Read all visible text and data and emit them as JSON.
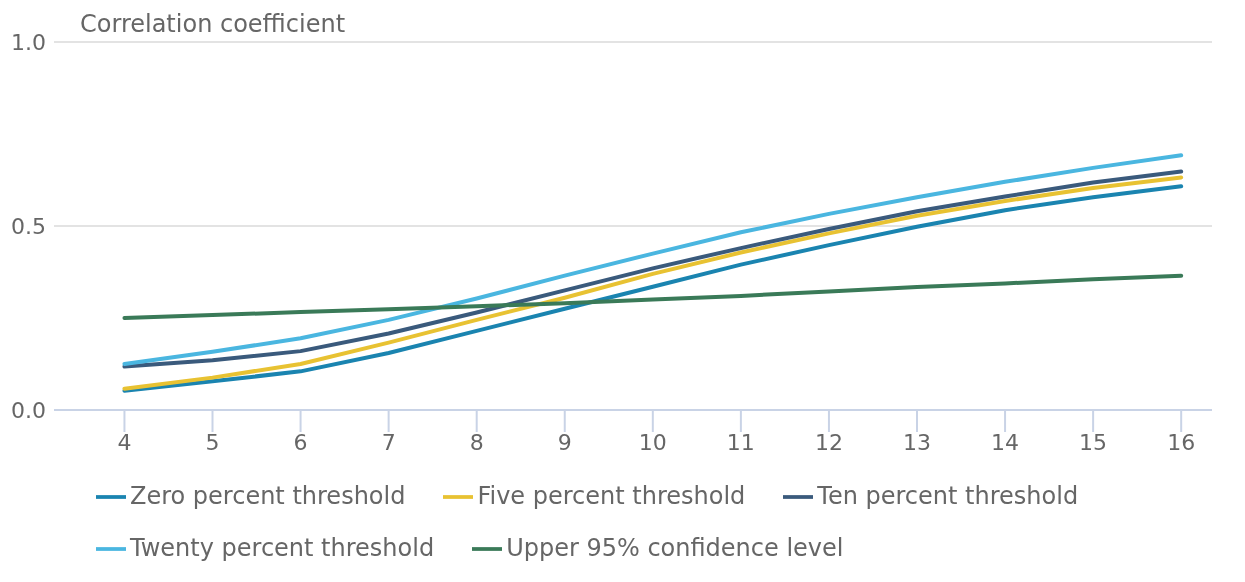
{
  "chart_data": {
    "type": "line",
    "ylabel": "Correlation coefficient",
    "x": [
      4,
      5,
      6,
      7,
      8,
      9,
      10,
      11,
      12,
      13,
      14,
      15,
      16
    ],
    "xlim": [
      3.2,
      16.35
    ],
    "xticks": [
      4,
      5,
      6,
      7,
      8,
      9,
      10,
      11,
      12,
      13,
      14,
      15,
      16
    ],
    "ylim": [
      0,
      1
    ],
    "yticks": [
      {
        "value": 0,
        "label": "0.0"
      },
      {
        "value": 0.5,
        "label": "0.5"
      },
      {
        "value": 1,
        "label": "1.0"
      }
    ],
    "grid": "y",
    "legend": "bottom",
    "marker": "none",
    "line_style": "solid",
    "series": [
      {
        "name": "Zero percent threshold",
        "color": "#1a84b0",
        "values": [
          0.052,
          0.078,
          0.105,
          0.155,
          0.215,
          0.275,
          0.335,
          0.395,
          0.448,
          0.498,
          0.543,
          0.578,
          0.608
        ]
      },
      {
        "name": "Five percent threshold",
        "color": "#e8c232",
        "values": [
          0.058,
          0.088,
          0.125,
          0.183,
          0.245,
          0.305,
          0.37,
          0.428,
          0.48,
          0.528,
          0.568,
          0.603,
          0.632
        ]
      },
      {
        "name": "Ten percent threshold",
        "color": "#3a5a7c",
        "values": [
          0.118,
          0.135,
          0.16,
          0.208,
          0.265,
          0.325,
          0.385,
          0.44,
          0.492,
          0.54,
          0.58,
          0.618,
          0.648
        ]
      },
      {
        "name": "Twenty percent threshold",
        "color": "#4ab6e0",
        "values": [
          0.125,
          0.158,
          0.195,
          0.245,
          0.303,
          0.365,
          0.425,
          0.483,
          0.533,
          0.578,
          0.62,
          0.658,
          0.692
        ]
      },
      {
        "name": "Upper 95% confidence level",
        "color": "#3a7a58",
        "values": [
          0.25,
          0.258,
          0.266,
          0.274,
          0.282,
          0.29,
          0.3,
          0.31,
          0.322,
          0.334,
          0.344,
          0.355,
          0.365
        ]
      }
    ]
  }
}
